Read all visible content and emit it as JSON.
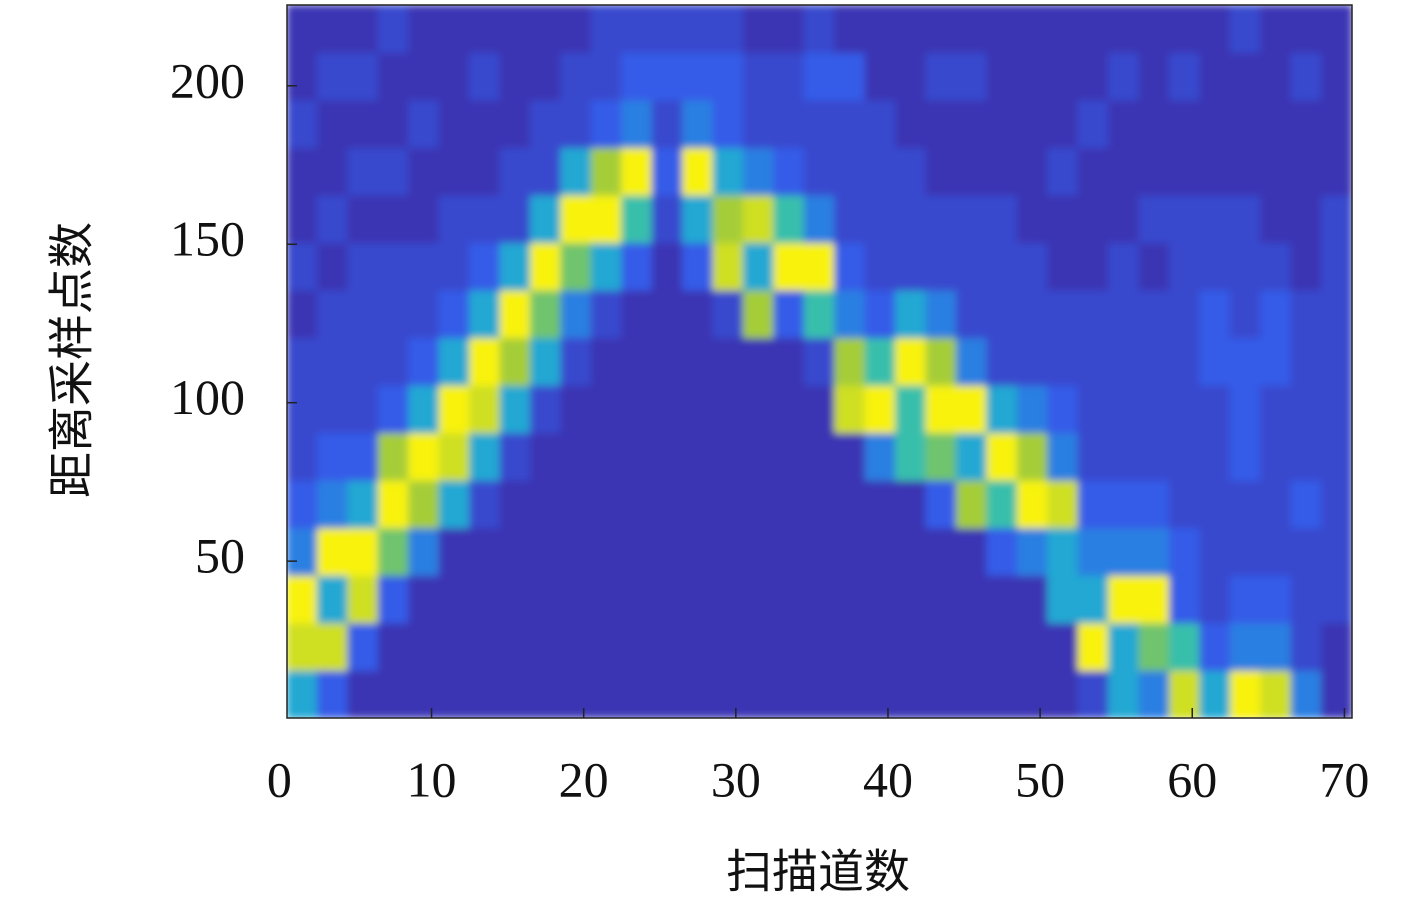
{
  "chart_data": {
    "type": "heatmap",
    "x_label": "扫描道数",
    "y_label": "距离采样点数",
    "xlim": [
      0.5,
      70.5
    ],
    "ylim": [
      0.5,
      225.5
    ],
    "xticks": [
      0,
      10,
      20,
      30,
      40,
      50,
      60,
      70
    ],
    "yticks": [
      50,
      100,
      150,
      200
    ],
    "xbins": [
      0.5,
      2.5,
      4.5,
      6.5,
      8.5,
      10.5,
      12.5,
      14.5,
      16.5,
      18.5,
      20.5,
      22.5,
      24.5,
      26.5,
      28.5,
      30.5,
      32.5,
      34.5,
      36.5,
      38.5,
      40.5,
      42.5,
      44.5,
      46.5,
      48.5,
      50.5,
      52.5,
      54.5,
      56.5,
      58.5,
      60.5,
      62.5,
      64.5,
      66.5,
      68.5,
      70.5
    ],
    "ybins": [
      0.5,
      15.5,
      30.5,
      45.5,
      60.5,
      75.5,
      90.5,
      105.5,
      120.5,
      135.5,
      150.5,
      165.5,
      180.5,
      195.5,
      210.5,
      225.5
    ],
    "zlim": [
      1,
      10
    ],
    "colormap": [
      "#3b34b4",
      "#3361ee",
      "#1bbccb",
      "#9bc83e",
      "#f8f20f"
    ],
    "z": [
      [
        5,
        9,
        10,
        4,
        3,
        2,
        2,
        2,
        1,
        2,
        1,
        1,
        2,
        1,
        1
      ],
      [
        3,
        9,
        5,
        10,
        4,
        3,
        2,
        2,
        2,
        1,
        2,
        1,
        1,
        2,
        1
      ],
      [
        1,
        3,
        9,
        10,
        5,
        3,
        2,
        2,
        2,
        2,
        1,
        2,
        1,
        2,
        1
      ],
      [
        1,
        1,
        3,
        7,
        10,
        8,
        3,
        2,
        2,
        2,
        1,
        2,
        1,
        1,
        2
      ],
      [
        1,
        1,
        1,
        4,
        8,
        10,
        5,
        3,
        2,
        2,
        1,
        1,
        2,
        1,
        1
      ],
      [
        1,
        1,
        1,
        1,
        5,
        9,
        10,
        5,
        3,
        2,
        2,
        1,
        1,
        1,
        1
      ],
      [
        1,
        1,
        1,
        1,
        2,
        5,
        9,
        10,
        5,
        3,
        2,
        1,
        1,
        2,
        1
      ],
      [
        1,
        1,
        1,
        1,
        1,
        2,
        5,
        8,
        10,
        5,
        2,
        2,
        1,
        1,
        1
      ],
      [
        1,
        1,
        1,
        1,
        1,
        1,
        2,
        5,
        7,
        10,
        5,
        2,
        2,
        1,
        1
      ],
      [
        1,
        1,
        1,
        1,
        1,
        1,
        1,
        2,
        4,
        7,
        10,
        5,
        2,
        2,
        1
      ],
      [
        1,
        1,
        1,
        1,
        1,
        1,
        1,
        1,
        2,
        5,
        10,
        8,
        3,
        2,
        2
      ],
      [
        1,
        1,
        1,
        1,
        1,
        1,
        1,
        1,
        1,
        3,
        6,
        10,
        4,
        3,
        2
      ],
      [
        1,
        1,
        1,
        1,
        1,
        1,
        1,
        1,
        1,
        1,
        2,
        3,
        2,
        3,
        2
      ],
      [
        1,
        1,
        1,
        1,
        1,
        1,
        1,
        1,
        1,
        3,
        5,
        10,
        4,
        3,
        2
      ],
      [
        1,
        1,
        1,
        1,
        1,
        1,
        1,
        1,
        2,
        9,
        8,
        5,
        3,
        3,
        2
      ],
      [
        1,
        1,
        1,
        1,
        1,
        1,
        1,
        1,
        8,
        5,
        9,
        4,
        2,
        2,
        1
      ],
      [
        1,
        1,
        1,
        1,
        1,
        1,
        1,
        1,
        3,
        10,
        6,
        3,
        2,
        2,
        1
      ],
      [
        1,
        1,
        1,
        1,
        1,
        1,
        1,
        2,
        6,
        10,
        4,
        2,
        2,
        3,
        2
      ],
      [
        1,
        1,
        1,
        1,
        1,
        1,
        9,
        8,
        4,
        3,
        2,
        2,
        2,
        3,
        1
      ],
      [
        1,
        1,
        1,
        1,
        1,
        4,
        10,
        6,
        3,
        2,
        2,
        2,
        2,
        1,
        1
      ],
      [
        1,
        1,
        1,
        1,
        1,
        6,
        6,
        10,
        5,
        2,
        2,
        2,
        1,
        1,
        1
      ],
      [
        1,
        1,
        1,
        1,
        3,
        7,
        10,
        8,
        4,
        2,
        2,
        1,
        1,
        2,
        1
      ],
      [
        1,
        1,
        1,
        1,
        8,
        5,
        10,
        4,
        2,
        2,
        2,
        1,
        1,
        2,
        1
      ],
      [
        1,
        1,
        1,
        3,
        6,
        10,
        5,
        2,
        2,
        2,
        2,
        1,
        1,
        1,
        1
      ],
      [
        1,
        1,
        1,
        4,
        10,
        8,
        4,
        2,
        2,
        2,
        1,
        1,
        1,
        1,
        1
      ],
      [
        1,
        1,
        5,
        5,
        9,
        4,
        3,
        2,
        2,
        1,
        1,
        2,
        1,
        1,
        1
      ],
      [
        2,
        10,
        5,
        4,
        3,
        2,
        2,
        2,
        2,
        1,
        1,
        1,
        2,
        1,
        1
      ],
      [
        5,
        5,
        10,
        4,
        3,
        2,
        2,
        2,
        2,
        2,
        1,
        1,
        1,
        2,
        1
      ],
      [
        4,
        7,
        10,
        4,
        3,
        2,
        2,
        2,
        2,
        1,
        2,
        1,
        1,
        1,
        1
      ],
      [
        9,
        6,
        3,
        3,
        2,
        2,
        2,
        2,
        2,
        2,
        2,
        1,
        1,
        2,
        1
      ],
      [
        5,
        3,
        2,
        2,
        2,
        2,
        2,
        3,
        3,
        2,
        2,
        1,
        1,
        1,
        1
      ],
      [
        10,
        4,
        3,
        2,
        2,
        3,
        3,
        3,
        2,
        2,
        2,
        1,
        1,
        1,
        2
      ],
      [
        9,
        4,
        3,
        2,
        2,
        2,
        2,
        3,
        3,
        2,
        1,
        1,
        1,
        1,
        1
      ],
      [
        4,
        2,
        2,
        2,
        3,
        2,
        2,
        2,
        2,
        1,
        1,
        1,
        1,
        2,
        1
      ],
      [
        1,
        1,
        2,
        2,
        2,
        2,
        2,
        2,
        2,
        2,
        2,
        1,
        1,
        1,
        1
      ]
    ]
  }
}
